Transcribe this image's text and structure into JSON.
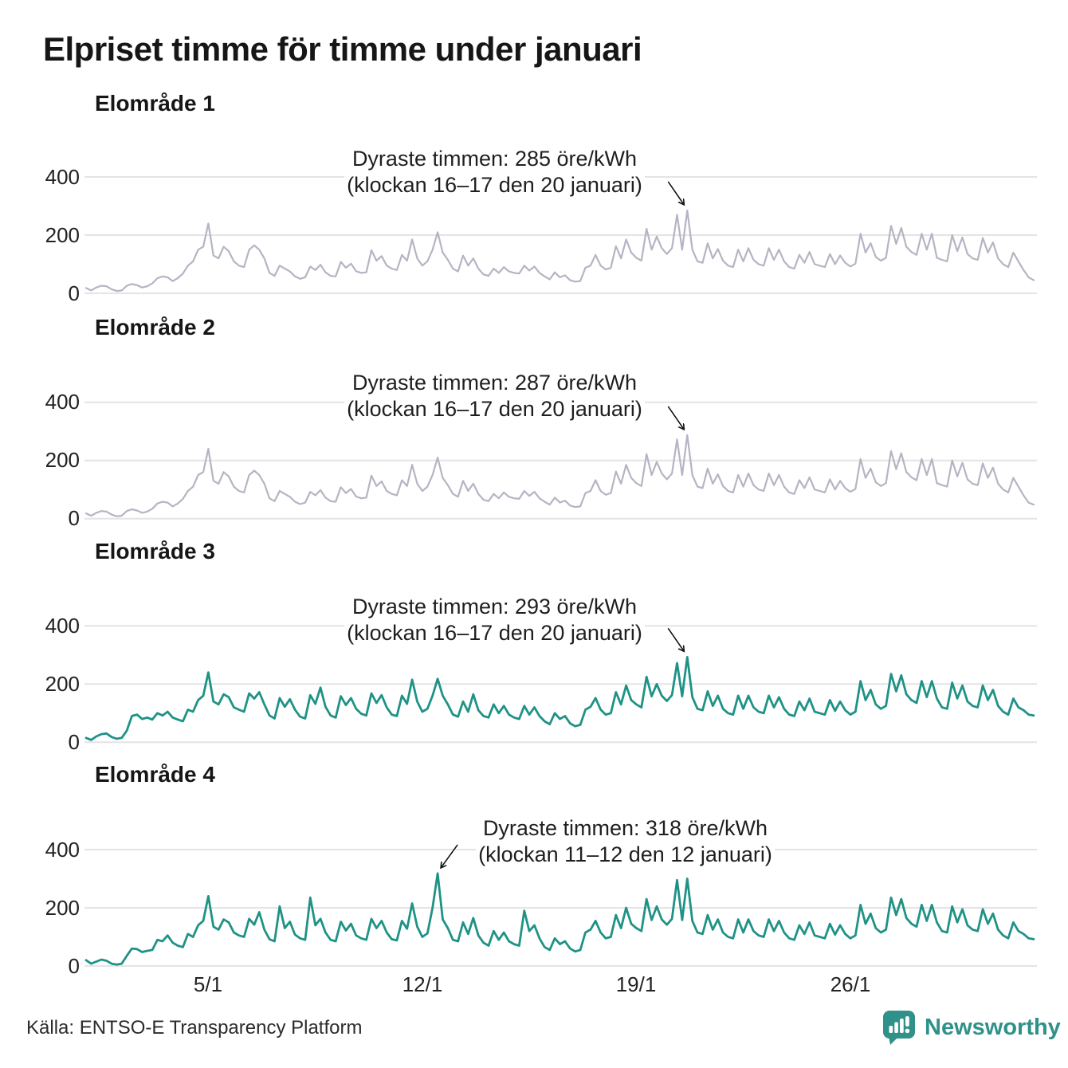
{
  "title": "Elpriset timme för timme under januari",
  "source": "Källa: ENTSO-E Transparency Platform",
  "logo": {
    "text": "Newsworthy",
    "icon": "bar-chart-speech-bubble-icon",
    "color": "#2f9189"
  },
  "colors": {
    "background": "#ffffff",
    "gridline": "#e4e4e4",
    "text": "#161616",
    "annotation_text": "#1f1f1f",
    "series_gray": "#b6b4c3",
    "series_teal": "#1f9286",
    "arrow": "#111111"
  },
  "x_axis": {
    "tick_labels": [
      "5/1",
      "12/1",
      "19/1",
      "26/1"
    ],
    "tick_days": [
      5,
      12,
      19,
      26
    ]
  },
  "y_axis": {
    "tick_labels": [
      "400",
      "200",
      "0"
    ],
    "tick_values": [
      400,
      200,
      0
    ]
  },
  "chart_data": [
    {
      "type": "line",
      "title": "Elområde 1",
      "unit": "öre/kWh",
      "color": "#b6b4c3",
      "ylim": [
        0,
        450
      ],
      "x_start_day": 1,
      "sample_interval_hours": 4,
      "annotation": {
        "line1": "Dyraste timmen: 285 öre/kWh",
        "line2": "(klockan 16–17 den 20 januari)",
        "max_value": 285,
        "arrow_direction": "down-right"
      },
      "values": [
        18,
        10,
        20,
        26,
        24,
        14,
        8,
        10,
        26,
        32,
        28,
        20,
        24,
        34,
        52,
        58,
        55,
        42,
        52,
        68,
        95,
        110,
        150,
        160,
        240,
        130,
        120,
        160,
        145,
        110,
        95,
        90,
        150,
        165,
        150,
        120,
        70,
        60,
        95,
        85,
        75,
        58,
        50,
        55,
        92,
        80,
        98,
        72,
        60,
        58,
        108,
        88,
        102,
        76,
        70,
        72,
        148,
        112,
        128,
        95,
        85,
        80,
        132,
        112,
        185,
        120,
        95,
        110,
        150,
        210,
        140,
        115,
        85,
        75,
        130,
        95,
        120,
        85,
        65,
        60,
        85,
        70,
        90,
        75,
        70,
        68,
        95,
        78,
        92,
        70,
        58,
        48,
        72,
        55,
        62,
        45,
        40,
        42,
        88,
        95,
        132,
        95,
        82,
        88,
        162,
        120,
        185,
        140,
        122,
        112,
        222,
        150,
        195,
        155,
        135,
        155,
        270,
        150,
        285,
        150,
        110,
        105,
        172,
        120,
        152,
        112,
        95,
        90,
        150,
        110,
        155,
        115,
        100,
        95,
        155,
        115,
        150,
        110,
        90,
        85,
        132,
        105,
        142,
        100,
        95,
        90,
        135,
        100,
        130,
        105,
        92,
        102,
        205,
        140,
        172,
        125,
        112,
        122,
        232,
        170,
        225,
        160,
        142,
        132,
        205,
        150,
        205,
        122,
        115,
        110,
        200,
        145,
        192,
        135,
        120,
        115,
        190,
        140,
        175,
        120,
        100,
        90,
        140,
        110,
        80,
        55,
        45
      ]
    },
    {
      "type": "line",
      "title": "Elområde 2",
      "unit": "öre/kWh",
      "color": "#b6b4c3",
      "ylim": [
        0,
        450
      ],
      "x_start_day": 1,
      "sample_interval_hours": 4,
      "annotation": {
        "line1": "Dyraste timmen: 287 öre/kWh",
        "line2": "(klockan 16–17 den 20 januari)",
        "max_value": 287,
        "arrow_direction": "down-right"
      },
      "values": [
        18,
        10,
        20,
        26,
        24,
        14,
        8,
        10,
        26,
        32,
        28,
        20,
        24,
        34,
        52,
        58,
        55,
        42,
        52,
        68,
        95,
        110,
        150,
        160,
        240,
        130,
        120,
        160,
        145,
        110,
        95,
        90,
        150,
        165,
        150,
        120,
        70,
        60,
        95,
        85,
        75,
        58,
        50,
        55,
        92,
        80,
        98,
        72,
        60,
        58,
        108,
        88,
        102,
        76,
        70,
        72,
        148,
        112,
        128,
        95,
        85,
        80,
        132,
        112,
        185,
        120,
        95,
        110,
        150,
        210,
        140,
        115,
        85,
        75,
        130,
        95,
        120,
        85,
        65,
        60,
        85,
        70,
        90,
        75,
        70,
        68,
        95,
        78,
        92,
        70,
        58,
        48,
        72,
        55,
        62,
        45,
        40,
        42,
        88,
        95,
        132,
        95,
        82,
        88,
        162,
        120,
        185,
        140,
        122,
        112,
        222,
        150,
        195,
        155,
        135,
        155,
        272,
        150,
        287,
        150,
        110,
        105,
        172,
        120,
        152,
        112,
        95,
        90,
        150,
        110,
        155,
        115,
        100,
        95,
        155,
        115,
        150,
        110,
        90,
        85,
        132,
        105,
        142,
        100,
        95,
        90,
        135,
        100,
        130,
        105,
        92,
        102,
        205,
        140,
        172,
        125,
        112,
        122,
        232,
        170,
        225,
        160,
        142,
        132,
        205,
        150,
        205,
        122,
        115,
        110,
        200,
        145,
        192,
        135,
        120,
        115,
        190,
        140,
        175,
        120,
        100,
        90,
        140,
        110,
        80,
        55,
        48
      ]
    },
    {
      "type": "line",
      "title": "Elområde 3",
      "unit": "öre/kWh",
      "color": "#1f9286",
      "ylim": [
        0,
        450
      ],
      "x_start_day": 1,
      "sample_interval_hours": 4,
      "annotation": {
        "line1": "Dyraste timmen: 293 öre/kWh",
        "line2": "(klockan 16–17 den 20 januari)",
        "max_value": 293,
        "arrow_direction": "down-right"
      },
      "values": [
        15,
        8,
        20,
        28,
        30,
        18,
        12,
        15,
        40,
        90,
        95,
        80,
        85,
        78,
        100,
        92,
        105,
        85,
        78,
        72,
        112,
        105,
        145,
        160,
        240,
        140,
        130,
        165,
        155,
        120,
        112,
        105,
        168,
        150,
        172,
        130,
        92,
        82,
        152,
        122,
        148,
        112,
        88,
        82,
        162,
        132,
        188,
        122,
        92,
        85,
        158,
        128,
        152,
        115,
        98,
        92,
        168,
        135,
        162,
        120,
        95,
        90,
        160,
        132,
        215,
        140,
        105,
        115,
        160,
        218,
        160,
        130,
        95,
        88,
        140,
        105,
        165,
        110,
        90,
        85,
        130,
        100,
        125,
        95,
        85,
        80,
        125,
        95,
        120,
        90,
        72,
        62,
        100,
        80,
        90,
        65,
        55,
        60,
        112,
        122,
        152,
        112,
        95,
        100,
        172,
        130,
        195,
        145,
        130,
        120,
        225,
        158,
        200,
        160,
        142,
        162,
        272,
        158,
        293,
        155,
        115,
        110,
        175,
        125,
        160,
        115,
        100,
        95,
        160,
        115,
        160,
        120,
        105,
        100,
        160,
        120,
        155,
        115,
        95,
        90,
        140,
        110,
        150,
        105,
        100,
        95,
        145,
        108,
        140,
        110,
        95,
        105,
        210,
        145,
        180,
        130,
        115,
        125,
        235,
        175,
        230,
        165,
        145,
        135,
        210,
        155,
        210,
        150,
        120,
        115,
        205,
        150,
        195,
        140,
        125,
        120,
        195,
        145,
        180,
        125,
        105,
        95,
        150,
        120,
        110,
        95,
        92
      ]
    },
    {
      "type": "line",
      "title": "Elområde 4",
      "unit": "öre/kWh",
      "color": "#1f9286",
      "ylim": [
        0,
        450
      ],
      "x_start_day": 1,
      "sample_interval_hours": 4,
      "annotation": {
        "line1": "Dyraste timmen: 318 öre/kWh",
        "line2": "(klockan 11–12 den 12 januari)",
        "max_value": 318,
        "arrow_direction": "down-left"
      },
      "values": [
        20,
        8,
        15,
        22,
        18,
        8,
        5,
        8,
        35,
        60,
        58,
        48,
        52,
        55,
        90,
        85,
        105,
        80,
        70,
        65,
        110,
        100,
        140,
        155,
        240,
        135,
        125,
        160,
        150,
        115,
        105,
        100,
        162,
        142,
        185,
        125,
        92,
        85,
        205,
        130,
        152,
        108,
        95,
        90,
        235,
        140,
        162,
        115,
        90,
        85,
        152,
        122,
        145,
        105,
        95,
        90,
        162,
        130,
        155,
        115,
        92,
        88,
        155,
        128,
        215,
        135,
        100,
        112,
        200,
        318,
        160,
        130,
        90,
        85,
        150,
        110,
        165,
        105,
        80,
        70,
        120,
        90,
        115,
        85,
        75,
        70,
        190,
        120,
        140,
        95,
        65,
        55,
        95,
        75,
        85,
        60,
        50,
        55,
        115,
        125,
        155,
        115,
        95,
        100,
        175,
        130,
        200,
        145,
        130,
        120,
        230,
        158,
        205,
        160,
        142,
        162,
        295,
        158,
        300,
        155,
        115,
        110,
        175,
        125,
        160,
        115,
        100,
        95,
        160,
        115,
        160,
        120,
        105,
        100,
        160,
        120,
        155,
        115,
        95,
        90,
        140,
        110,
        150,
        105,
        100,
        95,
        145,
        108,
        140,
        110,
        95,
        105,
        210,
        145,
        180,
        130,
        115,
        125,
        235,
        175,
        230,
        165,
        145,
        135,
        210,
        155,
        210,
        150,
        120,
        115,
        205,
        150,
        195,
        140,
        125,
        120,
        195,
        145,
        180,
        125,
        105,
        95,
        150,
        120,
        110,
        95,
        92
      ]
    }
  ]
}
